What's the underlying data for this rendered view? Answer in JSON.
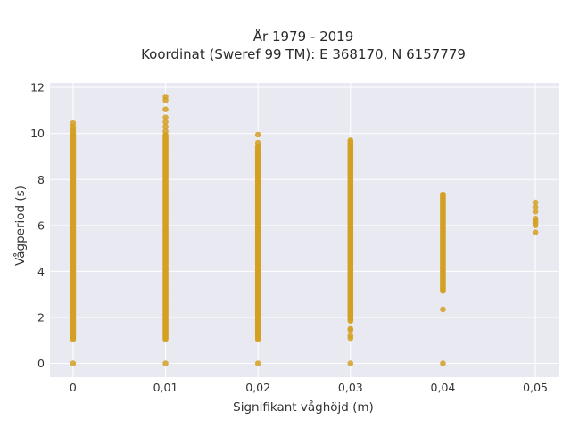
{
  "chart_data": {
    "type": "scatter",
    "title_line1": "År 1979 - 2019",
    "title_line2": "Koordinat (Sweref 99 TM): E 368170, N 6157779",
    "xlabel": "Signifikant våghöjd (m)",
    "ylabel": "Vågperiod (s)",
    "xlim": [
      -0.0025,
      0.0525
    ],
    "ylim": [
      -0.6,
      12.2
    ],
    "x_ticks": [
      0,
      0.01,
      0.02,
      0.03,
      0.04,
      0.05
    ],
    "x_tick_labels": [
      "0",
      "0,01",
      "0,02",
      "0,03",
      "0,04",
      "0,05"
    ],
    "y_ticks": [
      0,
      2,
      4,
      6,
      8,
      10,
      12
    ],
    "y_tick_labels": [
      "0",
      "2",
      "4",
      "6",
      "8",
      "10",
      "12"
    ],
    "grid": true,
    "marker_color": "#d4a023",
    "background_color": "#e9e9f1",
    "columns": [
      {
        "x": 0,
        "range": [
          1.05,
          9.95
        ],
        "extra_y": [
          0,
          10.0,
          10.1,
          10.2,
          10.3,
          10.45
        ]
      },
      {
        "x": 0.01,
        "range": [
          1.05,
          9.95
        ],
        "extra_y": [
          0,
          10.1,
          10.3,
          10.5,
          10.7,
          11.05,
          11.45,
          11.6
        ]
      },
      {
        "x": 0.02,
        "range": [
          1.05,
          9.45
        ],
        "extra_y": [
          0,
          9.6,
          9.95
        ]
      },
      {
        "x": 0.03,
        "range": [
          1.85,
          9.7
        ],
        "extra_y": [
          0,
          1.1,
          1.2,
          1.45,
          1.5
        ]
      },
      {
        "x": 0.04,
        "range": [
          3.15,
          7.35
        ],
        "extra_y": [
          0,
          2.35
        ]
      },
      {
        "x": 0.05,
        "range": [],
        "extra_y": [
          5.7,
          6.0,
          6.1,
          6.2,
          6.3,
          6.6,
          6.8,
          7.0
        ]
      }
    ]
  }
}
